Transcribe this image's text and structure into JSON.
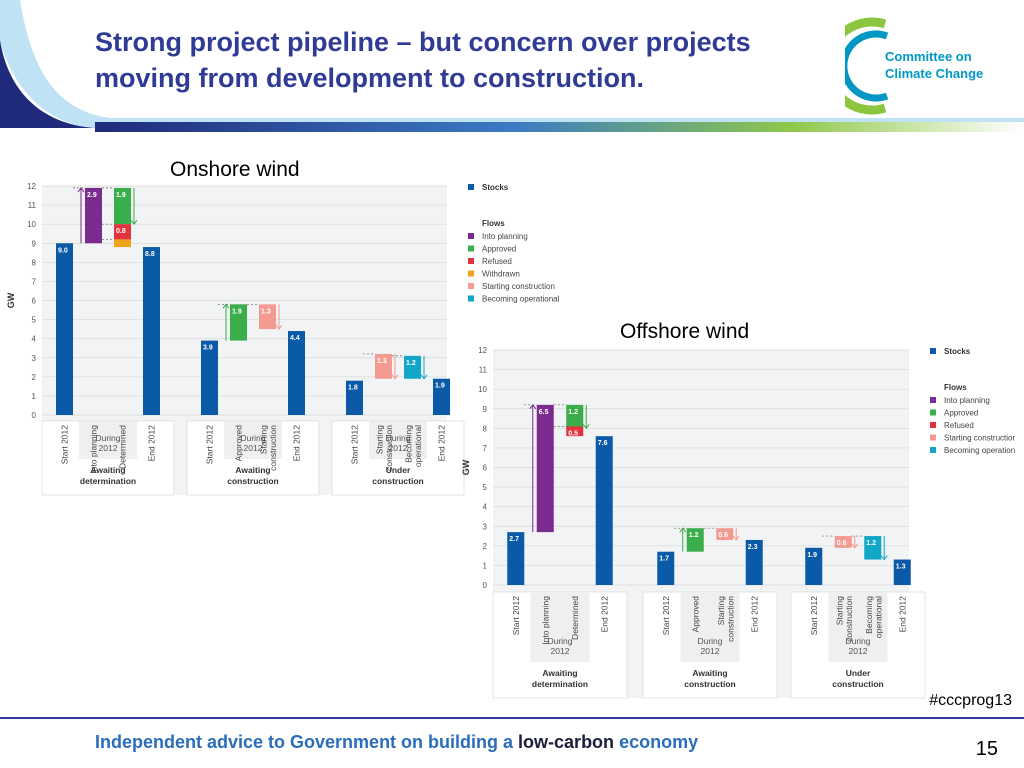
{
  "slide": {
    "title_line1": "Strong project pipeline – but concern over projects",
    "title_line2": "moving from development to construction.",
    "logo_line1": "Committee on",
    "logo_line2": "Climate Change",
    "hashtag": "#cccprog13",
    "tagline_part1": "Independent advice to Government on building a ",
    "tagline_part2": "low-carbon",
    "tagline_part3": " economy",
    "page_number": "15"
  },
  "colors": {
    "stock": "#0b5aa8",
    "into_planning": "#7b2a8e",
    "approved": "#3aae4a",
    "refused": "#e2343f",
    "withdrawn": "#f0a21a",
    "starting_construction": "#f39a91",
    "becoming_operational": "#12a7c7",
    "title": "#2f3b95"
  },
  "chart_data": [
    {
      "type": "bar",
      "title": "Onshore wind",
      "ylabel": "GW",
      "ylim": [
        0,
        12
      ],
      "yticks": [
        "0",
        "1",
        "2",
        "3",
        "4",
        "5",
        "6",
        "7",
        "8",
        "9",
        "10",
        "11",
        "12"
      ],
      "grid": true,
      "categories": [
        "Start 2012",
        "Into planning",
        "Determined",
        "End 2012",
        "Start 2012",
        "Approved",
        "Starting construction",
        "End 2012",
        "Start 2012",
        "Starting construction",
        "Becoming operational",
        "End 2012"
      ],
      "stocks": [
        {
          "category": "Start 2012",
          "group": "Awaiting determination",
          "value": 9.0,
          "label": "9.0"
        },
        {
          "category": "End 2012",
          "group": "Awaiting determination",
          "value": 8.8,
          "label": "8.8"
        },
        {
          "category": "Start 2012",
          "group": "Awaiting construction",
          "value": 3.9,
          "label": "3.9"
        },
        {
          "category": "End 2012",
          "group": "Awaiting construction",
          "value": 4.4,
          "label": "4.4"
        },
        {
          "category": "Start 2012",
          "group": "Under construction",
          "value": 1.8,
          "label": "1.8"
        },
        {
          "category": "End 2012",
          "group": "Under construction",
          "value": 1.9,
          "label": "1.9"
        }
      ],
      "flows": [
        {
          "category": "Into planning",
          "flow": "Into planning",
          "from": 9.0,
          "to": 11.9,
          "label": "2.9"
        },
        {
          "category": "Determined",
          "flow": "Approved",
          "from": 10.0,
          "to": 11.9,
          "label": "1.9"
        },
        {
          "category": "Determined",
          "flow": "Refused",
          "from": 9.2,
          "to": 10.0,
          "label": "0.8"
        },
        {
          "category": "Determined",
          "flow": "Withdrawn",
          "from": 8.8,
          "to": 9.2,
          "label": ""
        },
        {
          "category": "Approved",
          "flow": "Approved",
          "from": 3.9,
          "to": 5.8,
          "label": "1.9"
        },
        {
          "category": "Starting construction",
          "flow": "Starting construction",
          "from": 4.5,
          "to": 5.8,
          "label": "1.3"
        },
        {
          "category": "Starting construction",
          "flow": "Starting construction",
          "from": 1.9,
          "to": 3.2,
          "label": "1.3"
        },
        {
          "category": "Becoming operational",
          "flow": "Becoming operational",
          "from": 1.9,
          "to": 3.1,
          "label": "1.2"
        }
      ],
      "groups": [
        {
          "during": "During",
          "year": "2012",
          "name_line1": "Awaiting",
          "name_line2": "determination"
        },
        {
          "during": "During",
          "year": "2012",
          "name_line1": "Awaiting",
          "name_line2": "construction"
        },
        {
          "during": "During",
          "year": "2012",
          "name_line1": "Under",
          "name_line2": "construction"
        }
      ],
      "legend": {
        "placement": "right",
        "stocks_label": "Stocks",
        "flows_label": "Flows",
        "items": [
          "Into planning",
          "Approved",
          "Refused",
          "Withdrawn",
          "Starting construction",
          "Becoming operational"
        ]
      }
    },
    {
      "type": "bar",
      "title": "Offshore wind",
      "ylabel": "GW",
      "ylim": [
        0,
        12
      ],
      "yticks": [
        "0",
        "1",
        "2",
        "3",
        "4",
        "5",
        "6",
        "7",
        "8",
        "9",
        "10",
        "11",
        "12"
      ],
      "grid": true,
      "categories": [
        "Start 2012",
        "Into planning",
        "Determined",
        "End 2012",
        "Start 2012",
        "Approved",
        "Starting construction",
        "End 2012",
        "Start 2012",
        "Starting construction",
        "Becoming operational",
        "End 2012"
      ],
      "stocks": [
        {
          "category": "Start 2012",
          "group": "Awaiting determination",
          "value": 2.7,
          "label": "2.7"
        },
        {
          "category": "End 2012",
          "group": "Awaiting determination",
          "value": 7.6,
          "label": "7.6"
        },
        {
          "category": "Start 2012",
          "group": "Awaiting construction",
          "value": 1.7,
          "label": "1.7"
        },
        {
          "category": "End 2012",
          "group": "Awaiting construction",
          "value": 2.3,
          "label": "2.3"
        },
        {
          "category": "Start 2012",
          "group": "Under construction",
          "value": 1.9,
          "label": "1.9"
        },
        {
          "category": "End 2012",
          "group": "Under construction",
          "value": 1.3,
          "label": "1.3"
        }
      ],
      "flows": [
        {
          "category": "Into planning",
          "flow": "Into planning",
          "from": 2.7,
          "to": 9.2,
          "label": "6.5"
        },
        {
          "category": "Determined",
          "flow": "Approved",
          "from": 8.0,
          "to": 9.2,
          "label": "1.2"
        },
        {
          "category": "Determined",
          "flow": "Refused",
          "from": 7.6,
          "to": 8.1,
          "label": "0.5"
        },
        {
          "category": "Approved",
          "flow": "Approved",
          "from": 1.7,
          "to": 2.9,
          "label": "1.2"
        },
        {
          "category": "Starting construction",
          "flow": "Starting construction",
          "from": 2.3,
          "to": 2.9,
          "label": "0.6"
        },
        {
          "category": "Starting construction",
          "flow": "Starting construction",
          "from": 1.9,
          "to": 2.5,
          "label": "0.6"
        },
        {
          "category": "Becoming operational",
          "flow": "Becoming operational",
          "from": 1.3,
          "to": 2.5,
          "label": "1.2"
        }
      ],
      "groups": [
        {
          "during": "During",
          "year": "2012",
          "name_line1": "Awaiting",
          "name_line2": "determination"
        },
        {
          "during": "During",
          "year": "2012",
          "name_line1": "Awaiting",
          "name_line2": "construction"
        },
        {
          "during": "During",
          "year": "2012",
          "name_line1": "Under",
          "name_line2": "construction"
        }
      ],
      "legend": {
        "placement": "right",
        "stocks_label": "Stocks",
        "flows_label": "Flows",
        "items": [
          "Into planning",
          "Approved",
          "Refused",
          "Starting construction",
          "Becoming operational"
        ]
      }
    }
  ]
}
